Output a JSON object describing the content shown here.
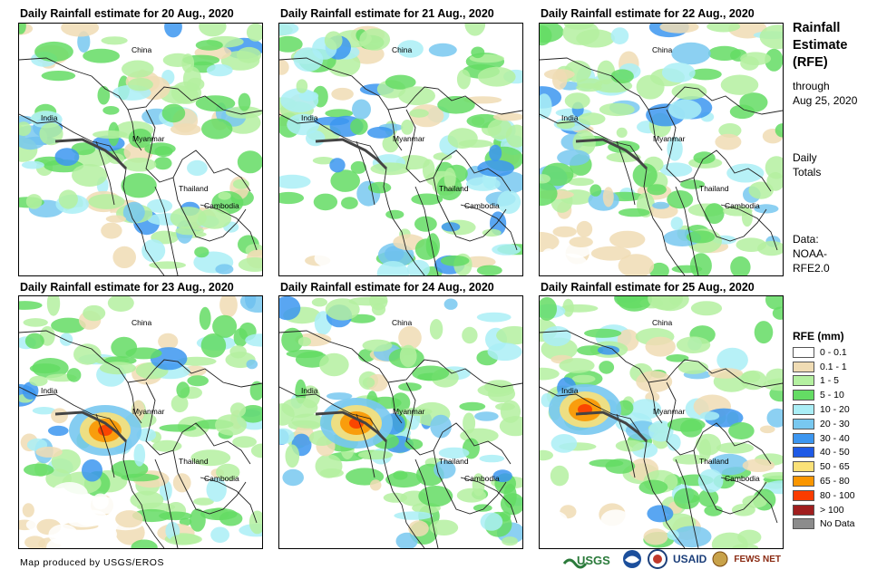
{
  "panels": [
    {
      "title": "Daily Rainfall estimate for 20 Aug., 2020",
      "labels": {
        "china": "China",
        "india": "India",
        "myanmar": "Myanmar",
        "thailand": "Thailand",
        "cambodia": "Cambodia"
      }
    },
    {
      "title": "Daily Rainfall estimate for 21 Aug., 2020",
      "labels": {
        "china": "China",
        "india": "India",
        "myanmar": "Myanmar",
        "thailand": "Thailand",
        "cambodia": "Cambodia"
      }
    },
    {
      "title": "Daily Rainfall estimate for 22 Aug., 2020",
      "labels": {
        "china": "China",
        "india": "India",
        "myanmar": "Myanmar",
        "thailand": "Thailand",
        "cambodia": "Cambodia"
      }
    },
    {
      "title": "Daily Rainfall estimate for 23 Aug., 2020",
      "labels": {
        "china": "China",
        "india": "India",
        "myanmar": "Myanmar",
        "thailand": "Thailand",
        "cambodia": "Cambodia"
      }
    },
    {
      "title": "Daily Rainfall estimate for 24 Aug., 2020",
      "labels": {
        "china": "China",
        "india": "India",
        "myanmar": "Myanmar",
        "thailand": "Thailand",
        "cambodia": "Cambodia"
      }
    },
    {
      "title": "Daily Rainfall estimate for 25 Aug., 2020",
      "labels": {
        "china": "China",
        "india": "India",
        "myanmar": "Myanmar",
        "thailand": "Thailand",
        "cambodia": "Cambodia"
      }
    }
  ],
  "sidebar": {
    "title_lines": [
      "Rainfall",
      "Estimate",
      "(RFE)"
    ],
    "through": "through",
    "date": "Aug 25, 2020",
    "totals_lines": [
      "Daily",
      "Totals"
    ],
    "data_lines": [
      "Data:",
      "NOAA-",
      "RFE2.0"
    ]
  },
  "legend": {
    "title": "RFE (mm)",
    "items": [
      {
        "label": "0 - 0.1",
        "color": "#ffffff"
      },
      {
        "label": "0.1 - 1",
        "color": "#f0dcb4"
      },
      {
        "label": "1 - 5",
        "color": "#b4f0a0"
      },
      {
        "label": "5 - 10",
        "color": "#64dc64"
      },
      {
        "label": "10 - 20",
        "color": "#aaeef6"
      },
      {
        "label": "20 - 30",
        "color": "#78c8f0"
      },
      {
        "label": "30 - 40",
        "color": "#3c96f0"
      },
      {
        "label": "40 - 50",
        "color": "#1e5ae6"
      },
      {
        "label": "50 - 65",
        "color": "#fae178"
      },
      {
        "label": "65 - 80",
        "color": "#fa9600"
      },
      {
        "label": "80 - 100",
        "color": "#fa3c00"
      },
      {
        "label": "> 100",
        "color": "#a01e1e"
      },
      {
        "label": "No Data",
        "color": "#8c8c8c"
      }
    ]
  },
  "footer": "Map produced by USGS/EROS",
  "logos": {
    "usgs": "USGS",
    "usaid": "USAID",
    "fewsnet": "FEWS NET"
  }
}
